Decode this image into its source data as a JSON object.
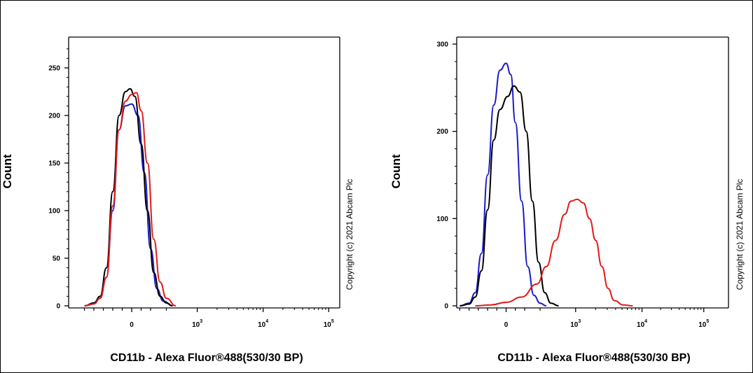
{
  "colors": {
    "black": "#000000",
    "blue": "#1a1acc",
    "red": "#e21a1a"
  },
  "chart_data": [
    {
      "type": "line",
      "xlabel": "CD11b - Alexa Fluor®488(530/30 BP)",
      "ylabel": "Count",
      "copyright": "Copyright (c) 2021 Abcam Plc",
      "ylim": [
        0,
        275
      ],
      "yticks": [
        "0",
        "50",
        "100",
        "150",
        "200",
        "250"
      ],
      "xticks": [
        {
          "base": "0",
          "exp": ""
        },
        {
          "base": "10",
          "exp": "3"
        },
        {
          "base": "10",
          "exp": "4"
        },
        {
          "base": "10",
          "exp": "5"
        }
      ],
      "series": [
        {
          "color": "#1a1acc",
          "points": [
            [
              -1.5,
              0
            ],
            [
              -1.2,
              2
            ],
            [
              -1,
              8
            ],
            [
              -0.8,
              30
            ],
            [
              -0.6,
              100
            ],
            [
              -0.4,
              185
            ],
            [
              -0.2,
              210
            ],
            [
              0,
              212
            ],
            [
              0.2,
              200
            ],
            [
              0.4,
              140
            ],
            [
              0.6,
              60
            ],
            [
              0.8,
              18
            ],
            [
              1.0,
              5
            ],
            [
              1.3,
              0
            ]
          ]
        },
        {
          "color": "#000000",
          "points": [
            [
              -1.5,
              0
            ],
            [
              -1.2,
              3
            ],
            [
              -1,
              10
            ],
            [
              -0.8,
              40
            ],
            [
              -0.6,
              120
            ],
            [
              -0.4,
              200
            ],
            [
              -0.2,
              225
            ],
            [
              -0.05,
              228
            ],
            [
              0.1,
              220
            ],
            [
              0.3,
              170
            ],
            [
              0.5,
              100
            ],
            [
              0.7,
              35
            ],
            [
              0.9,
              10
            ],
            [
              1.1,
              3
            ],
            [
              1.3,
              0
            ]
          ]
        },
        {
          "color": "#e21a1a",
          "points": [
            [
              -1.5,
              0
            ],
            [
              -1.2,
              2
            ],
            [
              -1,
              8
            ],
            [
              -0.8,
              30
            ],
            [
              -0.6,
              105
            ],
            [
              -0.4,
              185
            ],
            [
              -0.2,
              215
            ],
            [
              0,
              222
            ],
            [
              0.15,
              224
            ],
            [
              0.3,
              205
            ],
            [
              0.5,
              150
            ],
            [
              0.7,
              70
            ],
            [
              0.9,
              25
            ],
            [
              1.1,
              8
            ],
            [
              1.4,
              0
            ]
          ]
        }
      ]
    },
    {
      "type": "line",
      "xlabel": "CD11b - Alexa Fluor®488(530/30 BP)",
      "ylabel": "Count",
      "copyright": "Copyright (c) 2021 Abcam Plc",
      "ylim": [
        0,
        300
      ],
      "yticks": [
        "0",
        "100",
        "200",
        "300"
      ],
      "xticks": [
        {
          "base": "0",
          "exp": ""
        },
        {
          "base": "10",
          "exp": "3"
        },
        {
          "base": "10",
          "exp": "4"
        },
        {
          "base": "10",
          "exp": "5"
        }
      ],
      "series": [
        {
          "color": "#1a1acc",
          "points": [
            [
              -1.5,
              0
            ],
            [
              -1.2,
              3
            ],
            [
              -1,
              15
            ],
            [
              -0.8,
              60
            ],
            [
              -0.6,
              150
            ],
            [
              -0.4,
              230
            ],
            [
              -0.2,
              270
            ],
            [
              0,
              278
            ],
            [
              0.15,
              265
            ],
            [
              0.3,
              210
            ],
            [
              0.5,
              120
            ],
            [
              0.7,
              45
            ],
            [
              0.9,
              12
            ],
            [
              1.1,
              3
            ],
            [
              1.3,
              0
            ]
          ]
        },
        {
          "color": "#000000",
          "points": [
            [
              -1.5,
              0
            ],
            [
              -1.2,
              2
            ],
            [
              -1,
              10
            ],
            [
              -0.8,
              40
            ],
            [
              -0.6,
              110
            ],
            [
              -0.4,
              190
            ],
            [
              -0.2,
              225
            ],
            [
              0.05,
              240
            ],
            [
              0.25,
              252
            ],
            [
              0.45,
              245
            ],
            [
              0.65,
              200
            ],
            [
              0.85,
              120
            ],
            [
              1.05,
              50
            ],
            [
              1.25,
              15
            ],
            [
              1.45,
              3
            ],
            [
              1.7,
              0
            ]
          ]
        },
        {
          "color": "#e21a1a",
          "points": [
            [
              -1.0,
              0
            ],
            [
              -0.5,
              1
            ],
            [
              0,
              4
            ],
            [
              0.5,
              10
            ],
            [
              1.0,
              25
            ],
            [
              1.3,
              45
            ],
            [
              1.6,
              75
            ],
            [
              1.9,
              105
            ],
            [
              2.1,
              120
            ],
            [
              2.3,
              122
            ],
            [
              2.5,
              118
            ],
            [
              2.7,
              100
            ],
            [
              2.9,
              75
            ],
            [
              3.1,
              45
            ],
            [
              3.3,
              20
            ],
            [
              3.5,
              6
            ],
            [
              3.8,
              1
            ],
            [
              4.1,
              0
            ]
          ]
        }
      ]
    }
  ]
}
